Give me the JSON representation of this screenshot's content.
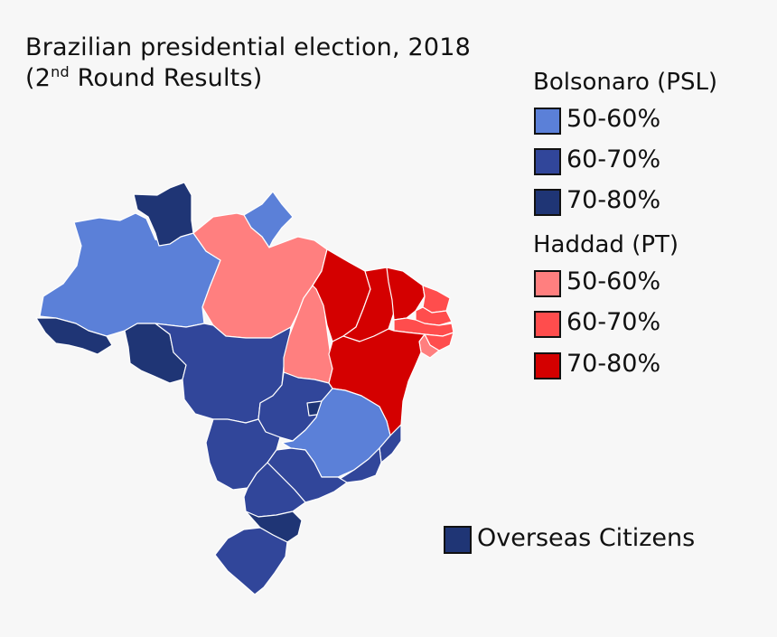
{
  "title": {
    "line1": "Brazilian presidential election, 2018",
    "line2_pre": "(2",
    "line2_sup": "nd",
    "line2_post": " Round Results)"
  },
  "legend": {
    "bolsonaro": {
      "heading": "Bolsonaro (PSL)",
      "items": [
        {
          "label": "50-60%",
          "color": "#5b80d8"
        },
        {
          "label": "60-70%",
          "color": "#31469a"
        },
        {
          "label": "70-80%",
          "color": "#1f3575"
        }
      ]
    },
    "haddad": {
      "heading": "Haddad (PT)",
      "items": [
        {
          "label": "50-60%",
          "color": "#ff7f7f"
        },
        {
          "label": "60-70%",
          "color": "#ff4d4d"
        },
        {
          "label": "70-80%",
          "color": "#d40000"
        }
      ]
    },
    "overseas": {
      "label": "Overseas Citizens",
      "color": "#1f3575"
    }
  },
  "map": {
    "states": [
      {
        "id": "AM",
        "color": "#5b80d8"
      },
      {
        "id": "RR",
        "color": "#1f3575"
      },
      {
        "id": "AP",
        "color": "#5b80d8"
      },
      {
        "id": "PA",
        "color": "#ff7f7f"
      },
      {
        "id": "AC",
        "color": "#1f3575"
      },
      {
        "id": "RO",
        "color": "#1f3575"
      },
      {
        "id": "MT",
        "color": "#31469a"
      },
      {
        "id": "TO",
        "color": "#ff7f7f"
      },
      {
        "id": "MA",
        "color": "#d40000"
      },
      {
        "id": "PI",
        "color": "#d40000"
      },
      {
        "id": "CE",
        "color": "#d40000"
      },
      {
        "id": "RN",
        "color": "#ff4d4d"
      },
      {
        "id": "PB",
        "color": "#ff4d4d"
      },
      {
        "id": "PE",
        "color": "#ff4d4d"
      },
      {
        "id": "AL",
        "color": "#ff4d4d"
      },
      {
        "id": "SE",
        "color": "#ff7f7f"
      },
      {
        "id": "BA",
        "color": "#d40000"
      },
      {
        "id": "GO",
        "color": "#31469a"
      },
      {
        "id": "DF",
        "color": "#1f3575"
      },
      {
        "id": "MG",
        "color": "#5b80d8"
      },
      {
        "id": "ES",
        "color": "#31469a"
      },
      {
        "id": "RJ",
        "color": "#31469a"
      },
      {
        "id": "MS",
        "color": "#31469a"
      },
      {
        "id": "SP",
        "color": "#31469a"
      },
      {
        "id": "PR",
        "color": "#31469a"
      },
      {
        "id": "SC",
        "color": "#1f3575"
      },
      {
        "id": "RS",
        "color": "#31469a"
      }
    ]
  }
}
